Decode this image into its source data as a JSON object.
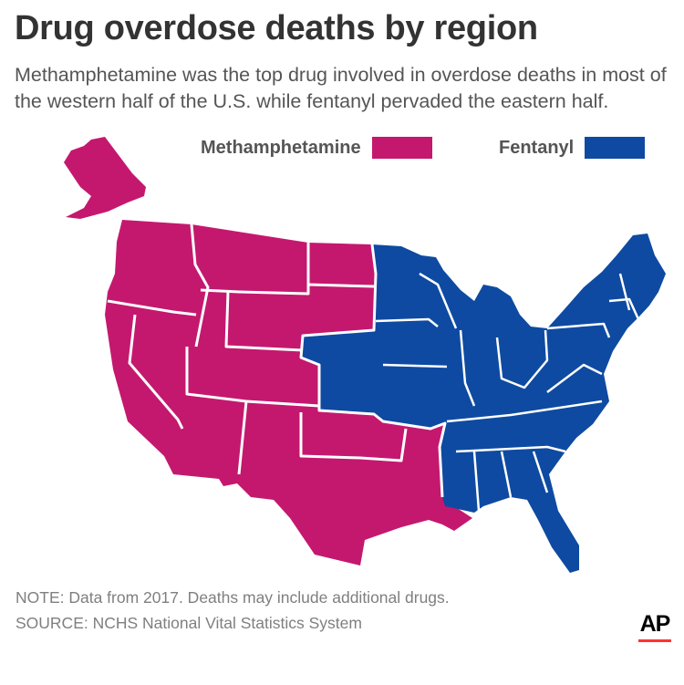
{
  "header": {
    "title": "Drug overdose deaths by region",
    "subtitle": "Methamphetamine was the top drug involved in overdose deaths in most of the western half of the U.S. while fentanyl pervaded the eastern half."
  },
  "legend": {
    "methamphetamine_label": "Methamphetamine",
    "fentanyl_label": "Fentanyl",
    "methamphetamine_color": "#c4186f",
    "fentanyl_color": "#0e4aa1"
  },
  "footer": {
    "note": "NOTE: Data from 2017. Deaths may include additional drugs.",
    "source": "SOURCE: NCHS National Vital Statistics System",
    "logo": "AP"
  }
}
